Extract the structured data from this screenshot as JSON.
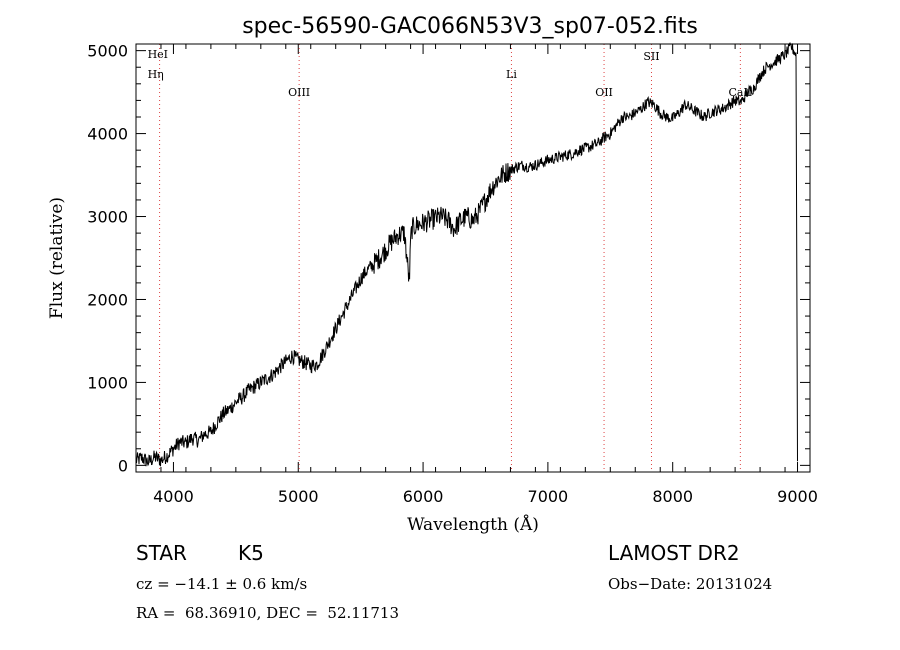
{
  "chart_data": {
    "type": "line",
    "title": "spec-56590-GAC066N53V3_sp07-052.fits",
    "xlabel": "Wavelength (Å)",
    "ylabel": "Flux (relative)",
    "xlim": [
      3700,
      9100
    ],
    "ylim": [
      -80,
      5080
    ],
    "x_ticks": [
      4000,
      5000,
      6000,
      7000,
      8000,
      9000
    ],
    "y_ticks": [
      0,
      1000,
      2000,
      3000,
      4000,
      5000
    ],
    "grid": false,
    "series": [
      {
        "x": [
          3700,
          3750,
          3800,
          3850,
          3900,
          3950,
          4000,
          4050,
          4100,
          4150,
          4200,
          4250,
          4300,
          4350,
          4400,
          4450,
          4500,
          4550,
          4600,
          4650,
          4700,
          4750,
          4800,
          4850,
          4900,
          4950,
          5000,
          5050,
          5100,
          5150,
          5200,
          5250,
          5300,
          5350,
          5400,
          5450,
          5500,
          5550,
          5600,
          5650,
          5700,
          5750,
          5800,
          5850,
          5890,
          5900,
          5910,
          5950,
          6000,
          6050,
          6100,
          6150,
          6200,
          6250,
          6300,
          6350,
          6400,
          6450,
          6500,
          6550,
          6600,
          6650,
          6700,
          6750,
          6800,
          6850,
          6900,
          6950,
          7000,
          7050,
          7100,
          7150,
          7200,
          7250,
          7300,
          7350,
          7400,
          7450,
          7500,
          7550,
          7600,
          7650,
          7700,
          7750,
          7800,
          7850,
          7900,
          7950,
          8000,
          8050,
          8100,
          8150,
          8200,
          8250,
          8300,
          8350,
          8400,
          8450,
          8500,
          8550,
          8600,
          8650,
          8700,
          8750,
          8800,
          8850,
          8900,
          8950,
          8990,
          9000
        ],
        "y": [
          60,
          90,
          40,
          100,
          60,
          120,
          200,
          280,
          270,
          330,
          300,
          380,
          400,
          520,
          620,
          680,
          760,
          820,
          900,
          950,
          1000,
          1050,
          1100,
          1180,
          1250,
          1320,
          1270,
          1240,
          1200,
          1220,
          1350,
          1500,
          1650,
          1800,
          1950,
          2100,
          2250,
          2350,
          2420,
          2500,
          2600,
          2700,
          2780,
          2800,
          2200,
          2700,
          2850,
          2900,
          2920,
          2950,
          2980,
          3000,
          2950,
          2850,
          2950,
          3000,
          2950,
          3050,
          3200,
          3350,
          3450,
          3520,
          3560,
          3600,
          3620,
          3600,
          3620,
          3650,
          3680,
          3700,
          3720,
          3740,
          3760,
          3800,
          3820,
          3850,
          3880,
          3950,
          4000,
          4100,
          4200,
          4200,
          4250,
          4300,
          4380,
          4350,
          4250,
          4200,
          4180,
          4250,
          4350,
          4300,
          4250,
          4200,
          4250,
          4280,
          4300,
          4350,
          4400,
          4380,
          4500,
          4550,
          4700,
          4800,
          4850,
          4900,
          4950,
          5050,
          4950,
          50
        ]
      }
    ],
    "lines": [
      {
        "x": 3889,
        "label": "HeI"
      },
      {
        "x": 3889,
        "label": "Hη"
      },
      {
        "x": 5007,
        "label": "OIII"
      },
      {
        "x": 6708,
        "label": "Li"
      },
      {
        "x": 7450,
        "label": "OII"
      },
      {
        "x": 7830,
        "label": "SII"
      },
      {
        "x": 8542,
        "label": "CaII"
      }
    ]
  },
  "info": {
    "object_type": "STAR",
    "subclass": "K5",
    "survey": "LAMOST DR2",
    "cz": "cz = −14.1 ± 0.6 km/s",
    "obs_date": "Obs−Date: 20131024",
    "coords": "RA =  68.36910, DEC =  52.11713"
  }
}
